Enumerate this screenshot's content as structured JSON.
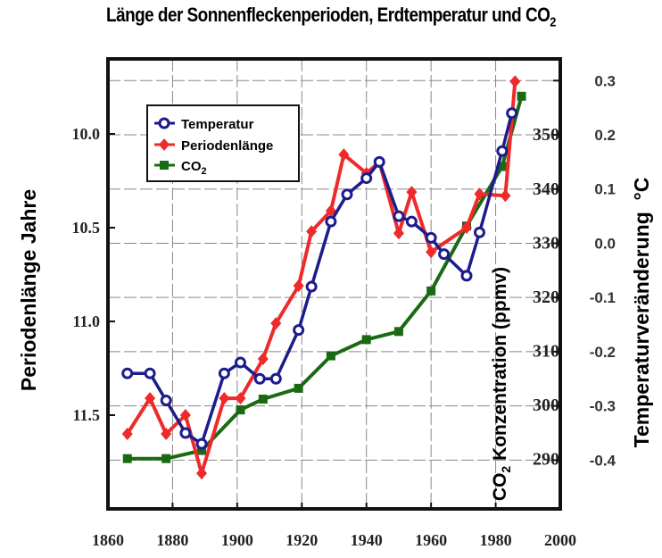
{
  "chart_data": {
    "type": "line",
    "title": "Länge der Sonnenfleckenperioden, Erdtemperatur und CO",
    "title_sub": "2",
    "xlim": [
      1860,
      2000
    ],
    "x_ticks": [
      "1860",
      "1880",
      "1900",
      "1920",
      "1940",
      "1960",
      "1980",
      "2000"
    ],
    "y_left": {
      "label": "Periodenlänge Jahre",
      "range": [
        9.6,
        12.0
      ],
      "reversed": true,
      "ticks": [
        "10.0",
        "10.5",
        "11.0",
        "11.5"
      ]
    },
    "y_right_co2": {
      "label_main": "CO",
      "label_sub": "2",
      "label_rest": " Konzentration (ppmv)",
      "range": [
        280.7,
        363.9
      ],
      "ticks": [
        "350",
        "340",
        "330",
        "320",
        "310",
        "300",
        "290"
      ]
    },
    "y_right_temp": {
      "label": "Temperaturveränderung  °C",
      "range": [
        -0.49,
        0.34
      ],
      "ticks": [
        "0.3",
        "0.2",
        "0.1",
        "0.0",
        "-0.1",
        "-0.2",
        "-0.3",
        "-0.4"
      ]
    },
    "grid": true,
    "legend_position": "top-left",
    "series": [
      {
        "name": "Temperatur",
        "axis": "temp",
        "color": "#1c1c8c",
        "marker": "open-circle",
        "x": [
          1866,
          1873,
          1878,
          1884,
          1889,
          1896,
          1901,
          1907,
          1912,
          1919,
          1923,
          1929,
          1934,
          1940,
          1944,
          1950,
          1954,
          1960,
          1964,
          1971,
          1975,
          1982,
          1985
        ],
        "y": [
          -0.24,
          -0.24,
          -0.29,
          -0.35,
          -0.37,
          -0.24,
          -0.22,
          -0.25,
          -0.25,
          -0.16,
          -0.08,
          0.04,
          0.09,
          0.12,
          0.15,
          0.05,
          0.04,
          0.01,
          -0.02,
          -0.06,
          0.02,
          0.17,
          0.24
        ]
      },
      {
        "name": "Periodenlänge",
        "axis": "left",
        "color": "#ee2a2a",
        "marker": "diamond",
        "x": [
          1866,
          1873,
          1878,
          1884,
          1889,
          1896,
          1901,
          1908,
          1912,
          1919,
          1923,
          1929,
          1933,
          1940,
          1944,
          1950,
          1954,
          1960,
          1971,
          1975,
          1983,
          1986
        ],
        "y": [
          11.6,
          11.41,
          11.6,
          11.5,
          11.81,
          11.41,
          11.41,
          11.2,
          11.01,
          10.81,
          10.52,
          10.41,
          10.11,
          10.21,
          10.15,
          10.53,
          10.31,
          10.63,
          10.5,
          10.32,
          10.33,
          9.72
        ]
      },
      {
        "name": "CO",
        "name_sub": "2",
        "axis": "co2",
        "color": "#1a6a14",
        "marker": "square",
        "x": [
          1866,
          1878,
          1889,
          1901,
          1908,
          1919,
          1929,
          1940,
          1950,
          1960,
          1971,
          1982,
          1988
        ],
        "y": [
          290,
          290,
          291.5,
          299,
          301,
          303,
          309,
          312,
          313.5,
          321,
          333,
          344,
          357
        ]
      }
    ]
  }
}
